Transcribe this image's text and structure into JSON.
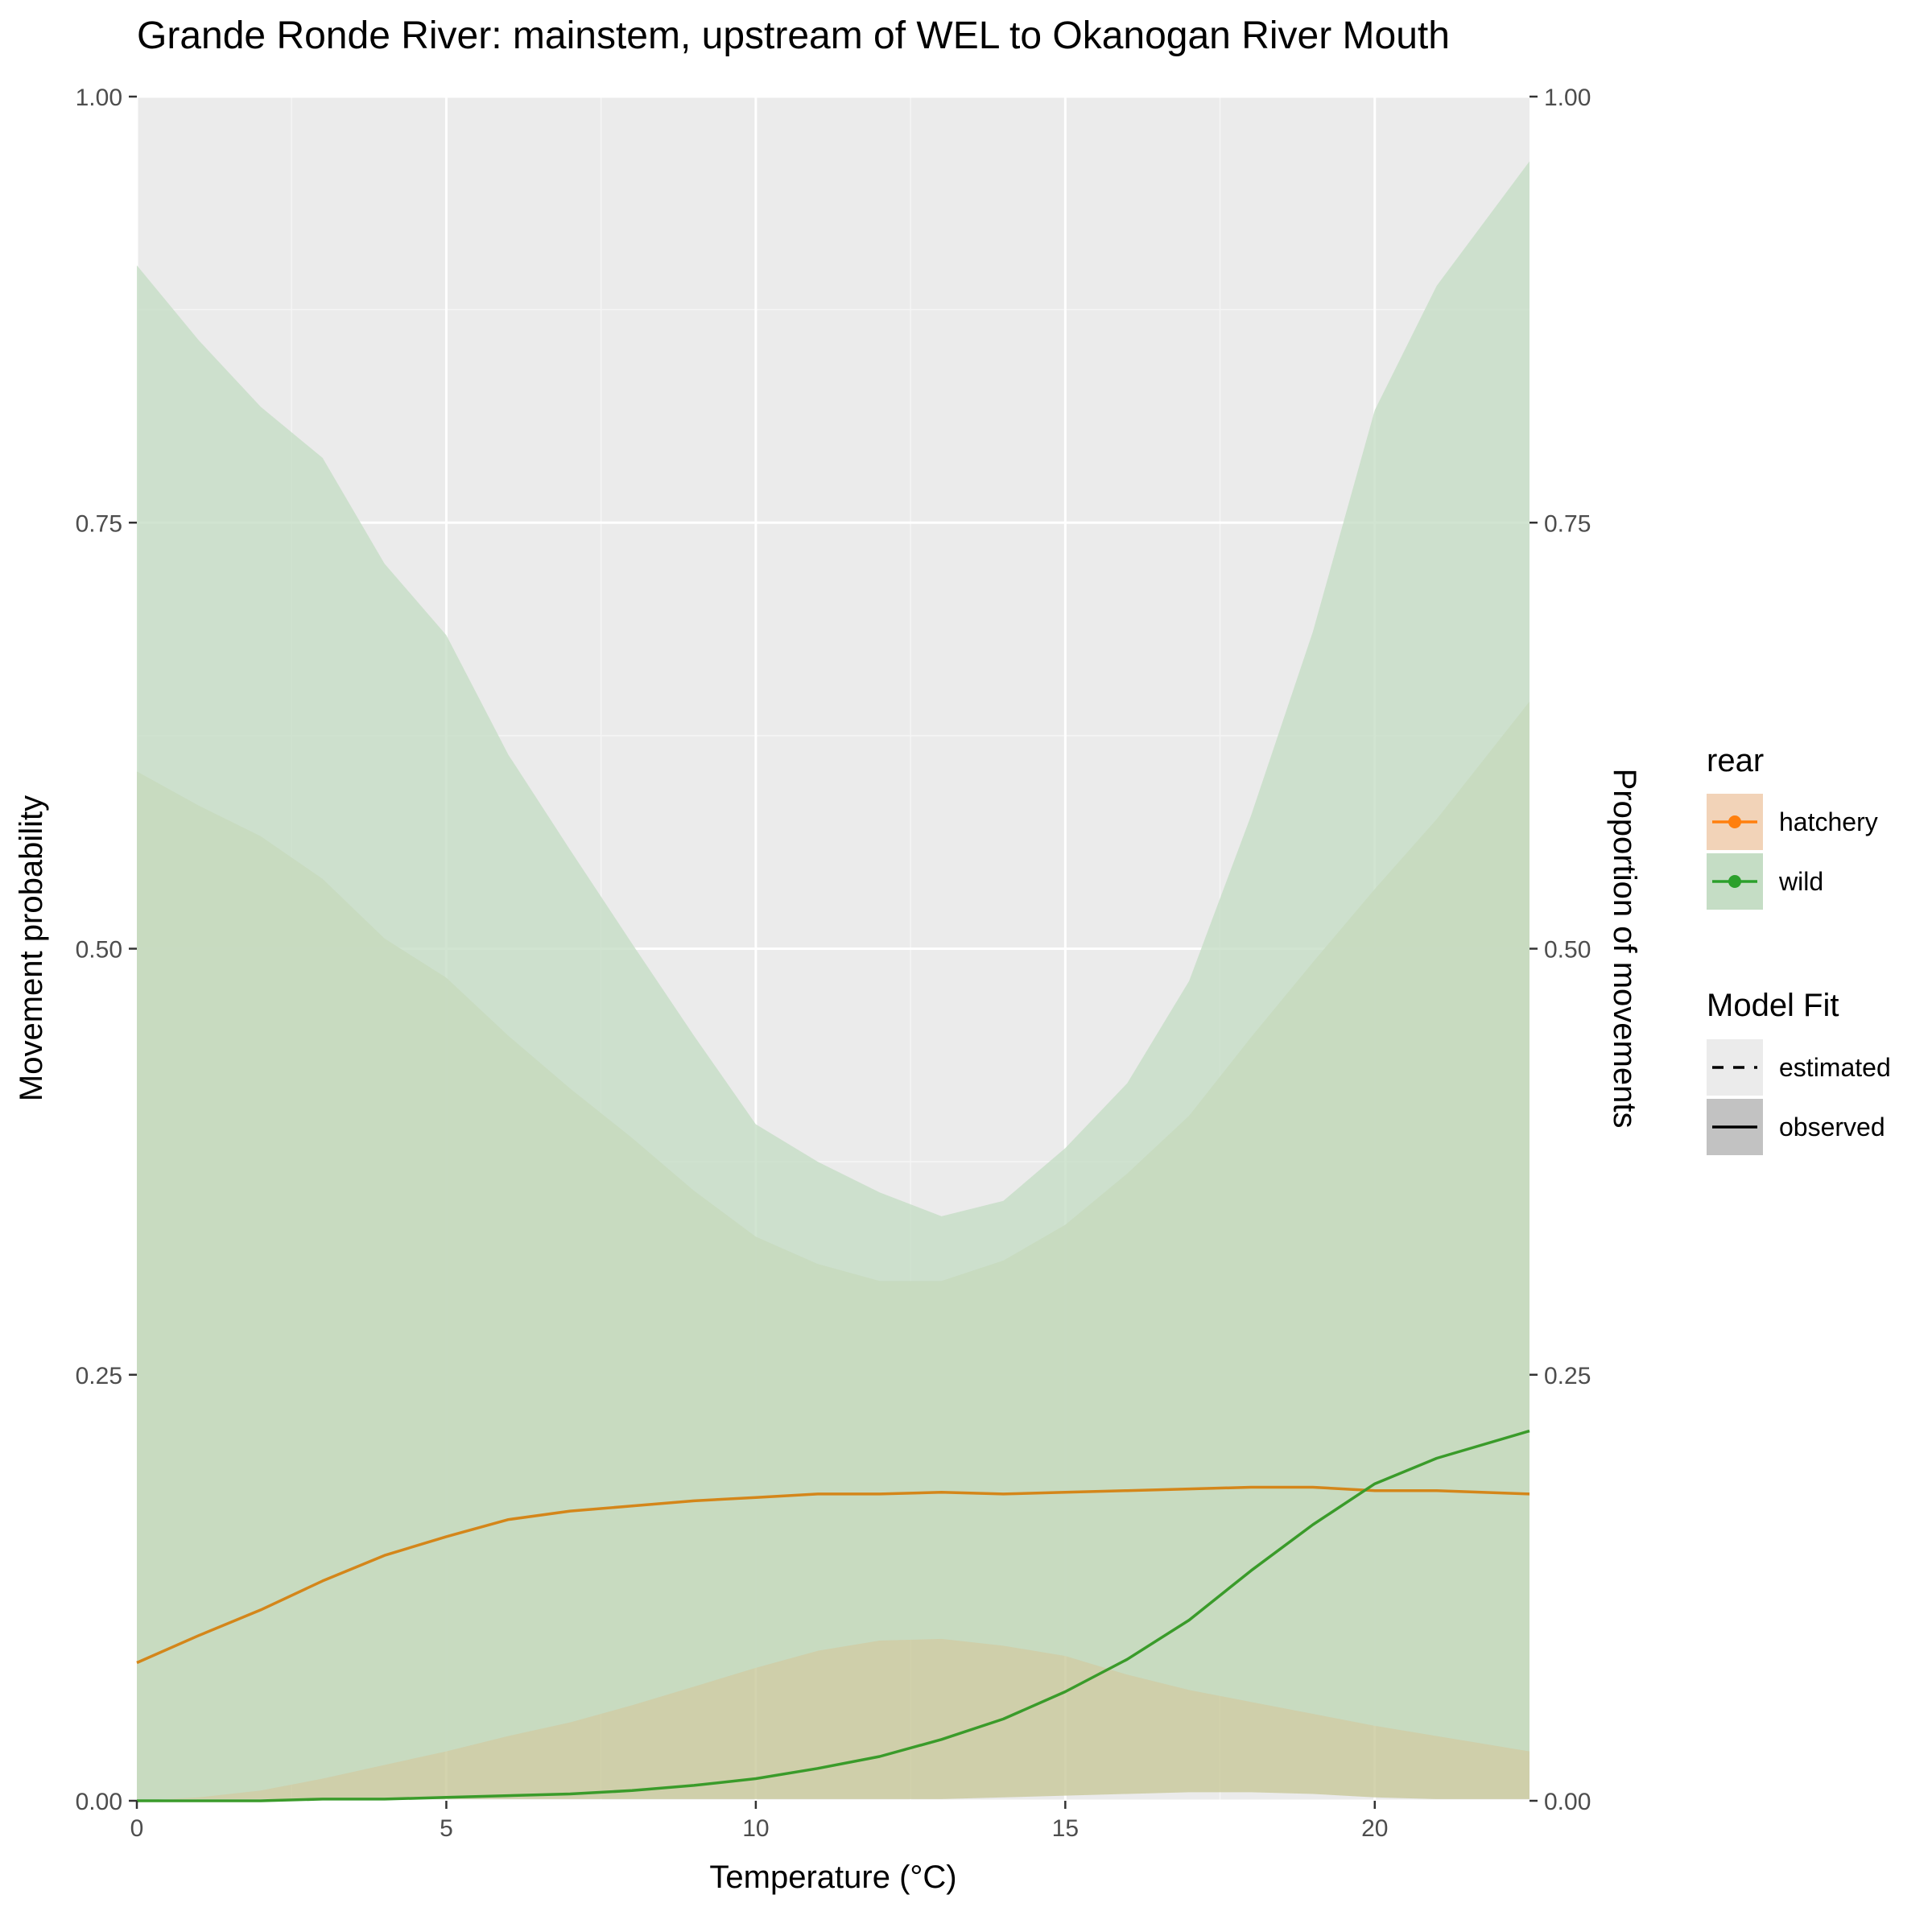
{
  "chart_data": {
    "type": "line",
    "title": "Grande Ronde River: mainstem, upstream of WEL to Okanogan River Mouth",
    "xlabel": "Temperature (°C)",
    "ylabel": "Movement probability",
    "ylabel_right": "Proportion of movements",
    "xlim": [
      0,
      22.5
    ],
    "ylim": [
      0,
      1
    ],
    "x_ticks": [
      0,
      5,
      10,
      15,
      20
    ],
    "x_tick_labels": [
      "0",
      "5",
      "10",
      "15",
      "20"
    ],
    "y_ticks": [
      0,
      0.25,
      0.5,
      0.75,
      1
    ],
    "y_tick_labels": [
      "0.00",
      "0.25",
      "0.50",
      "0.75",
      "1.00"
    ],
    "grid": true,
    "legend_placement": "right",
    "legend": {
      "color_title": "rear",
      "color_entries": [
        {
          "label": "hatchery",
          "color": "#ff7f0e",
          "fill": "#f2d3b8"
        },
        {
          "label": "wild",
          "color": "#2ca02c",
          "fill": "#c5ddc5"
        }
      ],
      "fit_title": "Model Fit",
      "fit_entries": [
        {
          "label": "estimated",
          "linetype": "dashed"
        },
        {
          "label": "observed",
          "linetype": "solid"
        }
      ]
    },
    "x": [
      0,
      1,
      2,
      3,
      4,
      5,
      6,
      7,
      8,
      9,
      10,
      11,
      12,
      13,
      14,
      15,
      16,
      17,
      18,
      19,
      20,
      21,
      22.5
    ],
    "series": [
      {
        "name": "hatchery",
        "color": "#d4861a",
        "values": [
          0.081,
          0.097,
          0.112,
          0.129,
          0.144,
          0.155,
          0.165,
          0.17,
          0.173,
          0.176,
          0.178,
          0.18,
          0.18,
          0.181,
          0.18,
          0.181,
          0.182,
          0.183,
          0.184,
          0.184,
          0.182,
          0.182,
          0.18
        ],
        "band_lower": [
          0.001,
          0.001,
          0.001,
          0.001,
          0.001,
          0.001,
          0.001,
          0.001,
          0.001,
          0.001,
          0.001,
          0.001,
          0.001,
          0.001,
          0.002,
          0.003,
          0.004,
          0.005,
          0.005,
          0.004,
          0.002,
          0.001,
          0.001
        ],
        "band_upper": [
          0.604,
          0.584,
          0.566,
          0.541,
          0.506,
          0.483,
          0.449,
          0.418,
          0.389,
          0.358,
          0.331,
          0.315,
          0.305,
          0.305,
          0.317,
          0.338,
          0.368,
          0.402,
          0.448,
          0.492,
          0.535,
          0.576,
          0.645
        ],
        "band_fill": "#c8c89a"
      },
      {
        "name": "wild",
        "color": "#3a9b2a",
        "values": [
          0.0,
          0.0,
          0.0,
          0.001,
          0.001,
          0.002,
          0.003,
          0.004,
          0.006,
          0.009,
          0.013,
          0.019,
          0.026,
          0.036,
          0.048,
          0.064,
          0.083,
          0.106,
          0.135,
          0.162,
          0.186,
          0.201,
          0.217
        ],
        "band_lower": [
          0.0,
          0.002,
          0.006,
          0.013,
          0.021,
          0.029,
          0.038,
          0.046,
          0.056,
          0.067,
          0.078,
          0.088,
          0.094,
          0.095,
          0.091,
          0.085,
          0.074,
          0.065,
          0.058,
          0.051,
          0.044,
          0.038,
          0.029
        ],
        "band_upper": [
          0.901,
          0.857,
          0.818,
          0.788,
          0.726,
          0.684,
          0.614,
          0.558,
          0.503,
          0.449,
          0.397,
          0.375,
          0.357,
          0.343,
          0.352,
          0.383,
          0.421,
          0.481,
          0.578,
          0.686,
          0.816,
          0.889,
          0.962
        ],
        "band_fill": "#c5ddc5"
      }
    ]
  }
}
